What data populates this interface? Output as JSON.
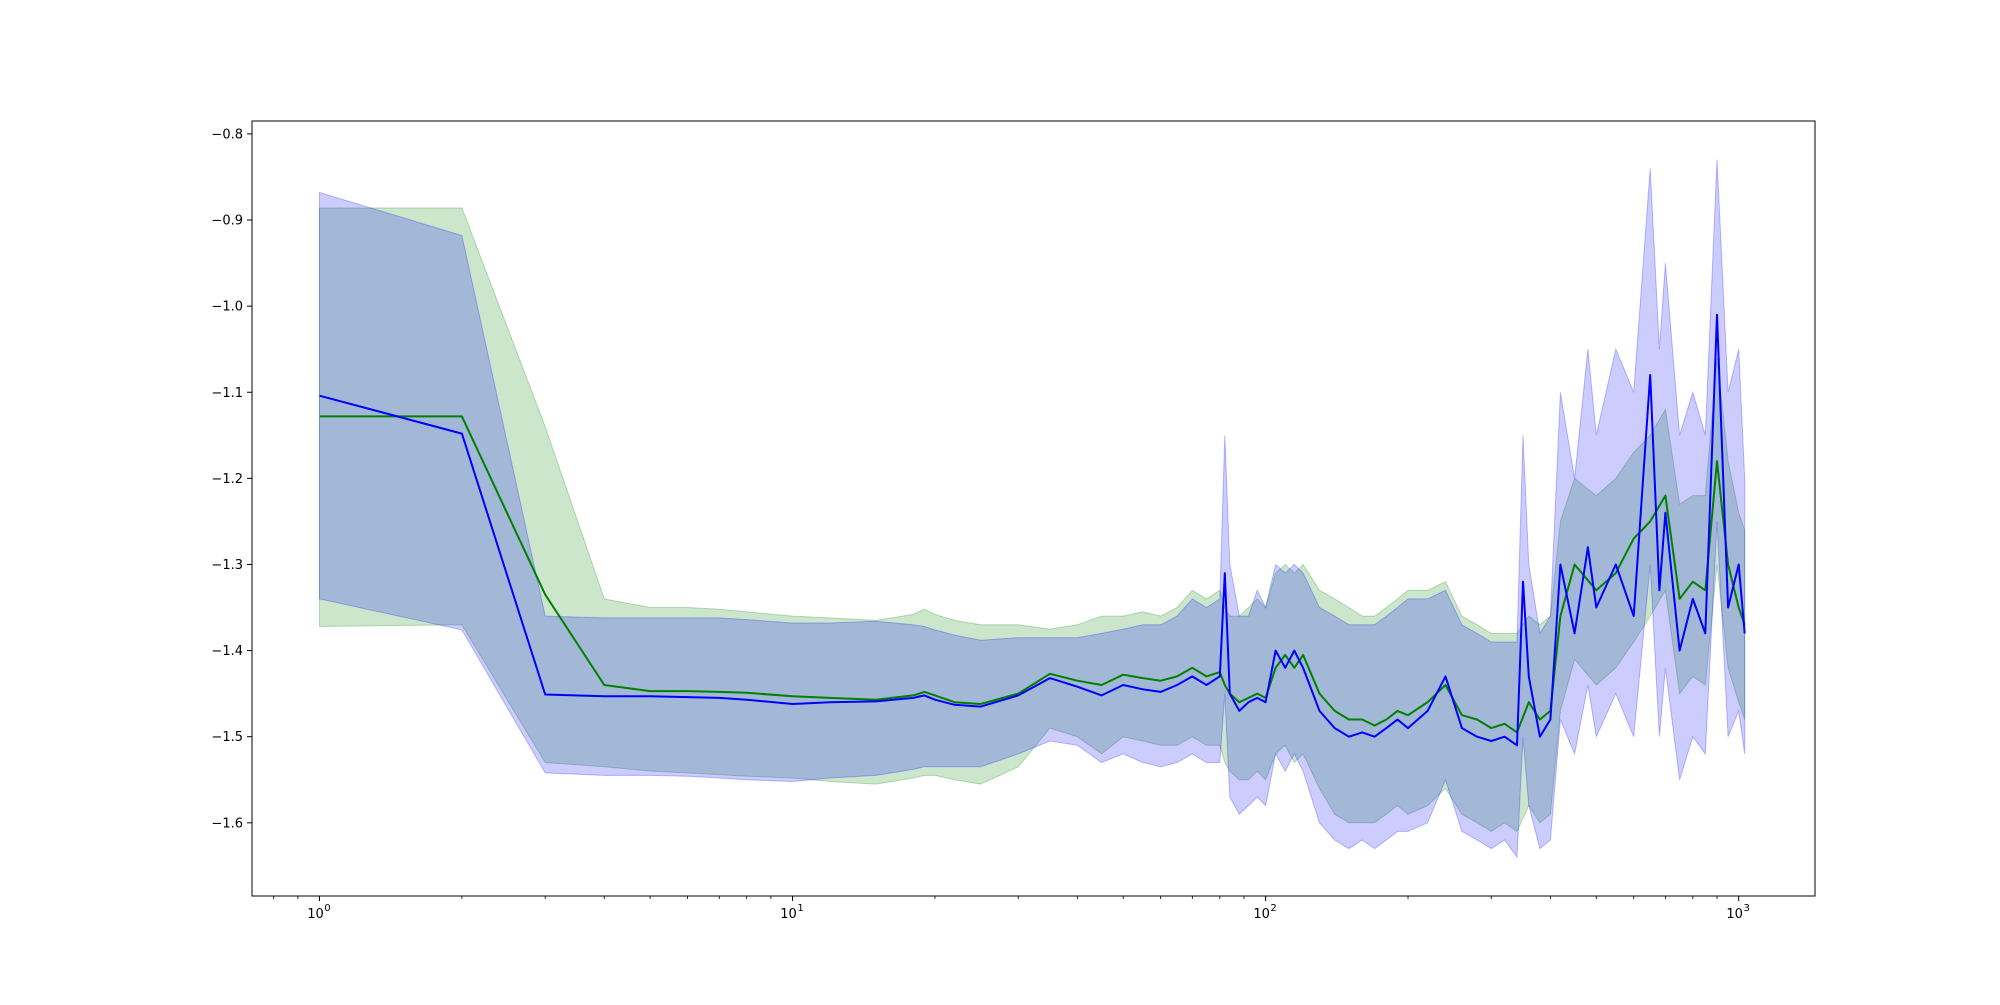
{
  "chart_data": {
    "type": "line",
    "title": "",
    "xlabel": "",
    "ylabel": "",
    "xscale": "log",
    "xlim": [
      0.72,
      1450
    ],
    "ylim": [
      -1.685,
      -0.785
    ],
    "grid": false,
    "legend": "none",
    "x_major_ticks": [
      1,
      10,
      100,
      1000
    ],
    "x_tick_labels": [
      {
        "base": "10",
        "exp": "0"
      },
      {
        "base": "10",
        "exp": "1"
      },
      {
        "base": "10",
        "exp": "2"
      },
      {
        "base": "10",
        "exp": "3"
      }
    ],
    "y_ticks": [
      -0.8,
      -0.9,
      -1.0,
      -1.1,
      -1.2,
      -1.3,
      -1.4,
      -1.5,
      -1.6
    ],
    "y_tick_labels": [
      "−0.8",
      "−0.9",
      "−1.0",
      "−1.1",
      "−1.2",
      "−1.3",
      "−1.4",
      "−1.5",
      "−1.6"
    ],
    "series": [
      {
        "color": "#008000",
        "band_color": "#008000",
        "band_opacity": 0.2,
        "x": [
          1,
          2,
          3,
          4,
          5,
          6,
          7,
          8,
          10,
          12,
          15,
          18,
          19,
          20,
          22,
          25,
          30,
          35,
          40,
          45,
          50,
          55,
          60,
          65,
          70,
          75,
          80,
          82,
          84,
          88,
          92,
          96,
          100,
          105,
          110,
          115,
          120,
          130,
          140,
          150,
          160,
          170,
          180,
          190,
          200,
          220,
          240,
          260,
          280,
          300,
          320,
          340,
          360,
          380,
          400,
          420,
          450,
          500,
          550,
          600,
          650,
          700,
          750,
          800,
          850,
          900,
          950,
          1000,
          1030
        ],
        "mean": [
          -1.128,
          -1.128,
          -1.335,
          -1.44,
          -1.447,
          -1.447,
          -1.448,
          -1.449,
          -1.453,
          -1.455,
          -1.457,
          -1.452,
          -1.448,
          -1.452,
          -1.46,
          -1.462,
          -1.45,
          -1.427,
          -1.435,
          -1.44,
          -1.428,
          -1.432,
          -1.435,
          -1.43,
          -1.42,
          -1.43,
          -1.425,
          -1.44,
          -1.45,
          -1.46,
          -1.455,
          -1.45,
          -1.455,
          -1.42,
          -1.405,
          -1.42,
          -1.405,
          -1.45,
          -1.47,
          -1.48,
          -1.48,
          -1.487,
          -1.48,
          -1.47,
          -1.475,
          -1.46,
          -1.44,
          -1.475,
          -1.48,
          -1.49,
          -1.485,
          -1.495,
          -1.46,
          -1.48,
          -1.47,
          -1.36,
          -1.3,
          -1.33,
          -1.31,
          -1.27,
          -1.25,
          -1.22,
          -1.34,
          -1.32,
          -1.33,
          -1.18,
          -1.3,
          -1.35,
          -1.37
        ],
        "upper": [
          -0.886,
          -0.886,
          -1.14,
          -1.34,
          -1.35,
          -1.35,
          -1.352,
          -1.355,
          -1.36,
          -1.362,
          -1.365,
          -1.358,
          -1.352,
          -1.358,
          -1.365,
          -1.37,
          -1.37,
          -1.375,
          -1.37,
          -1.36,
          -1.36,
          -1.355,
          -1.36,
          -1.35,
          -1.33,
          -1.34,
          -1.33,
          -1.35,
          -1.36,
          -1.36,
          -1.35,
          -1.34,
          -1.35,
          -1.31,
          -1.3,
          -1.31,
          -1.3,
          -1.33,
          -1.34,
          -1.35,
          -1.36,
          -1.36,
          -1.35,
          -1.34,
          -1.33,
          -1.33,
          -1.32,
          -1.36,
          -1.37,
          -1.38,
          -1.38,
          -1.38,
          -1.36,
          -1.37,
          -1.36,
          -1.25,
          -1.2,
          -1.22,
          -1.2,
          -1.17,
          -1.15,
          -1.12,
          -1.23,
          -1.22,
          -1.22,
          -1.06,
          -1.18,
          -1.24,
          -1.26
        ],
        "lower": [
          -1.372,
          -1.37,
          -1.53,
          -1.535,
          -1.54,
          -1.542,
          -1.544,
          -1.546,
          -1.548,
          -1.552,
          -1.555,
          -1.548,
          -1.545,
          -1.545,
          -1.55,
          -1.555,
          -1.535,
          -1.49,
          -1.5,
          -1.52,
          -1.5,
          -1.505,
          -1.51,
          -1.51,
          -1.5,
          -1.51,
          -1.51,
          -1.53,
          -1.54,
          -1.55,
          -1.55,
          -1.54,
          -1.55,
          -1.52,
          -1.51,
          -1.53,
          -1.52,
          -1.56,
          -1.59,
          -1.6,
          -1.6,
          -1.6,
          -1.59,
          -1.58,
          -1.59,
          -1.58,
          -1.56,
          -1.59,
          -1.6,
          -1.61,
          -1.6,
          -1.61,
          -1.58,
          -1.6,
          -1.59,
          -1.47,
          -1.41,
          -1.44,
          -1.42,
          -1.39,
          -1.36,
          -1.33,
          -1.45,
          -1.43,
          -1.44,
          -1.3,
          -1.42,
          -1.46,
          -1.48
        ]
      },
      {
        "color": "#0000ff",
        "band_color": "#0000ff",
        "band_opacity": 0.2,
        "x": [
          1,
          2,
          3,
          4,
          5,
          6,
          7,
          8,
          10,
          12,
          15,
          18,
          19,
          20,
          22,
          25,
          30,
          35,
          40,
          45,
          50,
          55,
          60,
          65,
          70,
          75,
          80,
          82,
          84,
          88,
          92,
          96,
          100,
          105,
          110,
          115,
          120,
          130,
          140,
          150,
          160,
          170,
          180,
          190,
          200,
          220,
          240,
          260,
          280,
          300,
          320,
          340,
          350,
          360,
          380,
          400,
          420,
          450,
          480,
          500,
          550,
          600,
          650,
          680,
          700,
          750,
          800,
          850,
          900,
          950,
          1000,
          1030
        ],
        "mean": [
          -1.104,
          -1.148,
          -1.451,
          -1.453,
          -1.453,
          -1.454,
          -1.455,
          -1.457,
          -1.462,
          -1.46,
          -1.459,
          -1.455,
          -1.452,
          -1.457,
          -1.463,
          -1.465,
          -1.452,
          -1.432,
          -1.442,
          -1.452,
          -1.44,
          -1.445,
          -1.448,
          -1.44,
          -1.43,
          -1.44,
          -1.43,
          -1.31,
          -1.45,
          -1.47,
          -1.46,
          -1.455,
          -1.46,
          -1.4,
          -1.42,
          -1.4,
          -1.42,
          -1.47,
          -1.49,
          -1.5,
          -1.495,
          -1.5,
          -1.49,
          -1.48,
          -1.49,
          -1.47,
          -1.43,
          -1.49,
          -1.5,
          -1.505,
          -1.5,
          -1.51,
          -1.32,
          -1.43,
          -1.5,
          -1.48,
          -1.3,
          -1.38,
          -1.28,
          -1.35,
          -1.3,
          -1.36,
          -1.08,
          -1.33,
          -1.24,
          -1.4,
          -1.34,
          -1.38,
          -1.01,
          -1.35,
          -1.3,
          -1.38
        ],
        "upper": [
          -0.868,
          -0.918,
          -1.36,
          -1.362,
          -1.362,
          -1.362,
          -1.362,
          -1.364,
          -1.368,
          -1.368,
          -1.366,
          -1.37,
          -1.372,
          -1.376,
          -1.382,
          -1.388,
          -1.385,
          -1.385,
          -1.385,
          -1.38,
          -1.375,
          -1.37,
          -1.37,
          -1.36,
          -1.34,
          -1.35,
          -1.34,
          -1.15,
          -1.3,
          -1.36,
          -1.36,
          -1.33,
          -1.35,
          -1.3,
          -1.31,
          -1.3,
          -1.31,
          -1.35,
          -1.36,
          -1.37,
          -1.37,
          -1.37,
          -1.36,
          -1.35,
          -1.34,
          -1.34,
          -1.33,
          -1.37,
          -1.38,
          -1.39,
          -1.39,
          -1.39,
          -1.15,
          -1.3,
          -1.38,
          -1.36,
          -1.1,
          -1.2,
          -1.05,
          -1.15,
          -1.05,
          -1.1,
          -0.84,
          -1.05,
          -0.95,
          -1.15,
          -1.1,
          -1.15,
          -0.83,
          -1.1,
          -1.05,
          -1.2
        ],
        "lower": [
          -1.34,
          -1.376,
          -1.542,
          -1.545,
          -1.545,
          -1.546,
          -1.548,
          -1.55,
          -1.552,
          -1.548,
          -1.545,
          -1.538,
          -1.535,
          -1.535,
          -1.535,
          -1.535,
          -1.52,
          -1.505,
          -1.51,
          -1.53,
          -1.52,
          -1.53,
          -1.535,
          -1.53,
          -1.52,
          -1.53,
          -1.53,
          -1.45,
          -1.57,
          -1.59,
          -1.58,
          -1.57,
          -1.58,
          -1.52,
          -1.54,
          -1.52,
          -1.54,
          -1.6,
          -1.62,
          -1.63,
          -1.62,
          -1.63,
          -1.62,
          -1.61,
          -1.61,
          -1.6,
          -1.55,
          -1.61,
          -1.62,
          -1.63,
          -1.62,
          -1.64,
          -1.5,
          -1.58,
          -1.63,
          -1.62,
          -1.48,
          -1.52,
          -1.44,
          -1.5,
          -1.45,
          -1.5,
          -1.3,
          -1.5,
          -1.42,
          -1.55,
          -1.5,
          -1.52,
          -1.25,
          -1.5,
          -1.47,
          -1.52
        ]
      }
    ]
  }
}
